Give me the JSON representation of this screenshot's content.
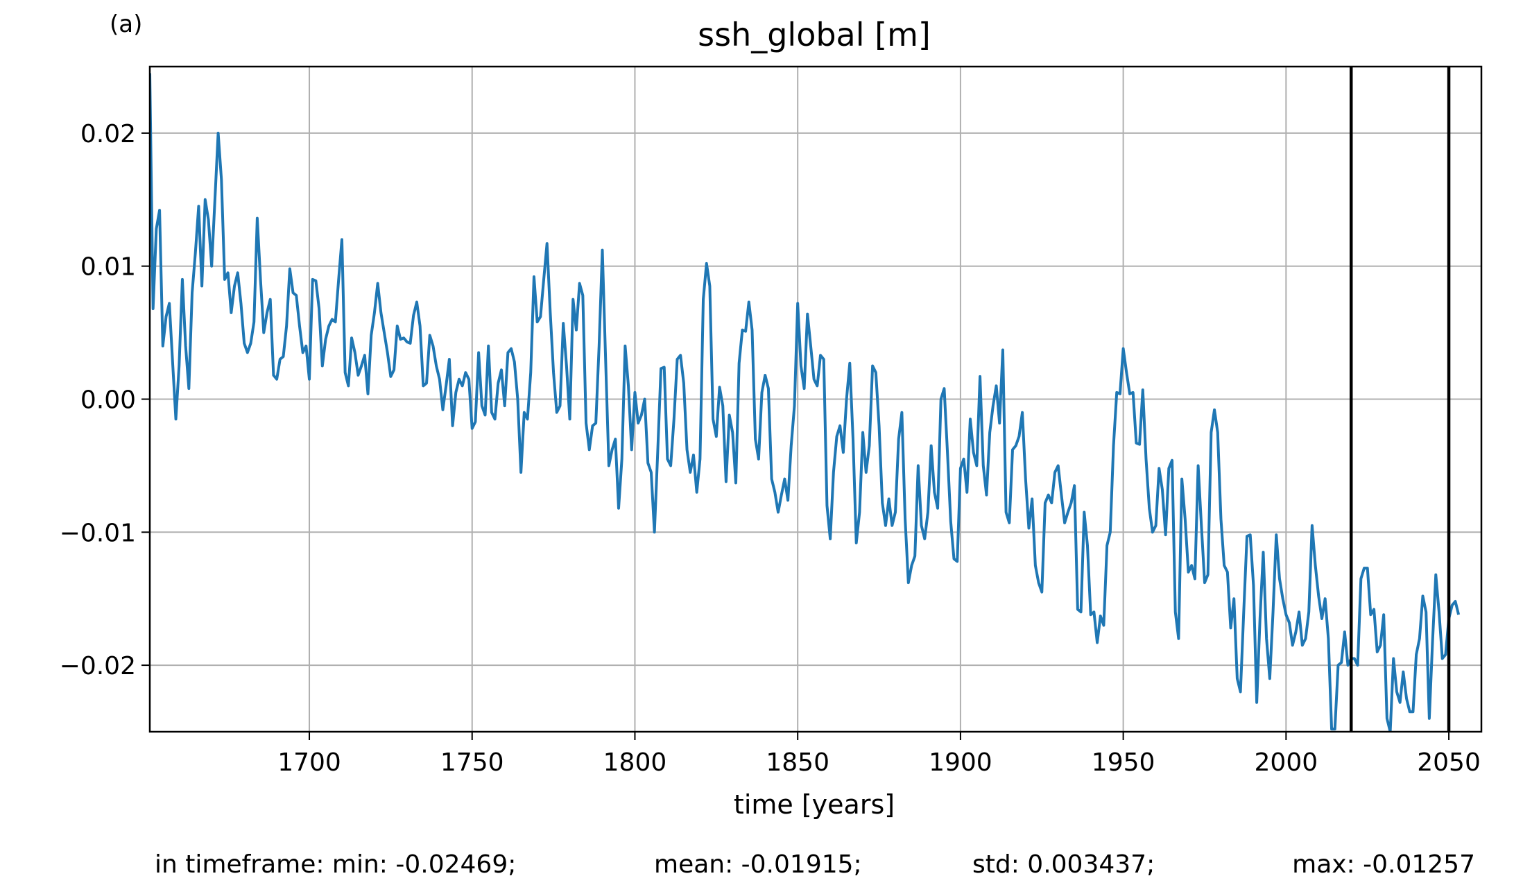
{
  "panel_label": "(a)",
  "chart_data": {
    "type": "line",
    "title": "ssh_global [m]",
    "xlabel": "time [years]",
    "ylabel": "",
    "xlim": [
      1651,
      2060
    ],
    "ylim": [
      -0.025,
      0.025
    ],
    "xticks": [
      1700,
      1750,
      1800,
      1850,
      1900,
      1950,
      2000,
      2050
    ],
    "xtick_labels": [
      "1700",
      "1750",
      "1800",
      "1850",
      "1900",
      "1950",
      "2000",
      "2050"
    ],
    "yticks": [
      -0.02,
      -0.01,
      0.0,
      0.01,
      0.02
    ],
    "ytick_labels": [
      "−0.02",
      "−0.01",
      "0.00",
      "0.01",
      "0.02"
    ],
    "grid": true,
    "line_color": "#1f77b4",
    "vlines": [
      2020,
      2050
    ],
    "vline_color": "#000000",
    "series": [
      {
        "x_start": 1651,
        "x_step": 1,
        "values": [
          0.0245,
          0.0068,
          0.0128,
          0.0142,
          0.004,
          0.0062,
          0.0072,
          0.0028,
          -0.0015,
          0.0025,
          0.009,
          0.004,
          0.0008,
          0.008,
          0.011,
          0.0145,
          0.0085,
          0.015,
          0.0135,
          0.01,
          0.015,
          0.02,
          0.0165,
          0.009,
          0.0095,
          0.0065,
          0.0085,
          0.0095,
          0.0072,
          0.0042,
          0.0035,
          0.0042,
          0.0058,
          0.0136,
          0.009,
          0.005,
          0.0065,
          0.0075,
          0.0018,
          0.0015,
          0.003,
          0.0032,
          0.0055,
          0.0098,
          0.008,
          0.0078,
          0.0055,
          0.0035,
          0.004,
          0.0015,
          0.009,
          0.0089,
          0.0068,
          0.0025,
          0.0045,
          0.0055,
          0.006,
          0.0058,
          0.009,
          0.012,
          0.002,
          0.001,
          0.0046,
          0.0035,
          0.0018,
          0.0025,
          0.0033,
          0.0004,
          0.0048,
          0.0065,
          0.0087,
          0.0065,
          0.005,
          0.0035,
          0.0017,
          0.0022,
          0.0055,
          0.0045,
          0.0046,
          0.0043,
          0.0042,
          0.0063,
          0.0073,
          0.0055,
          0.001,
          0.0012,
          0.0048,
          0.004,
          0.0025,
          0.0015,
          -0.0008,
          0.001,
          0.003,
          -0.002,
          0.0005,
          0.0015,
          0.001,
          0.002,
          0.0015,
          -0.0022,
          -0.0017,
          0.0035,
          -0.0005,
          -0.0012,
          0.004,
          -0.001,
          -0.0015,
          0.0012,
          0.0022,
          -0.0005,
          0.0035,
          0.0038,
          0.0028,
          0.0,
          -0.0055,
          -0.001,
          -0.0015,
          0.002,
          0.0092,
          0.0058,
          0.0062,
          0.009,
          0.0117,
          0.0065,
          0.002,
          -0.001,
          -0.0005,
          0.0057,
          0.0025,
          -0.0015,
          0.0075,
          0.0052,
          0.0087,
          0.0078,
          -0.0018,
          -0.0038,
          -0.002,
          -0.0018,
          0.004,
          0.0112,
          0.003,
          -0.005,
          -0.0038,
          -0.003,
          -0.0082,
          -0.0045,
          0.004,
          0.001,
          -0.0038,
          0.0005,
          -0.0018,
          -0.0012,
          0.0,
          -0.0048,
          -0.0055,
          -0.01,
          -0.004,
          0.0023,
          0.0024,
          -0.0045,
          -0.005,
          -0.0015,
          0.003,
          0.0033,
          0.0012,
          -0.0038,
          -0.0055,
          -0.0042,
          -0.007,
          -0.0045,
          0.0075,
          0.0102,
          0.0085,
          -0.0015,
          -0.0028,
          0.0009,
          -0.0005,
          -0.0062,
          -0.0012,
          -0.0025,
          -0.0063,
          0.0027,
          0.0052,
          0.0051,
          0.0073,
          0.0052,
          -0.003,
          -0.0045,
          0.0005,
          0.0018,
          0.0008,
          -0.006,
          -0.007,
          -0.0085,
          -0.0072,
          -0.006,
          -0.0076,
          -0.0035,
          -0.0005,
          0.0072,
          0.0025,
          0.0008,
          0.0064,
          0.004,
          0.0015,
          0.001,
          0.0033,
          0.003,
          -0.008,
          -0.0105,
          -0.0055,
          -0.0028,
          -0.002,
          -0.004,
          0.0,
          0.0027,
          -0.003,
          -0.0108,
          -0.0085,
          -0.0025,
          -0.0055,
          -0.0035,
          0.0025,
          0.002,
          -0.002,
          -0.0078,
          -0.0095,
          -0.0075,
          -0.0095,
          -0.0085,
          -0.003,
          -0.001,
          -0.009,
          -0.0138,
          -0.0125,
          -0.0118,
          -0.005,
          -0.0095,
          -0.0105,
          -0.0085,
          -0.0035,
          -0.007,
          -0.0082,
          0.0,
          0.0008,
          -0.004,
          -0.0092,
          -0.012,
          -0.0122,
          -0.0052,
          -0.0045,
          -0.007,
          -0.0015,
          -0.004,
          -0.005,
          0.0017,
          -0.005,
          -0.0072,
          -0.0025,
          -0.0005,
          0.001,
          -0.0018,
          0.0037,
          -0.0085,
          -0.0093,
          -0.0038,
          -0.0035,
          -0.0028,
          -0.001,
          -0.006,
          -0.0097,
          -0.0075,
          -0.0125,
          -0.0138,
          -0.0145,
          -0.0078,
          -0.0072,
          -0.0078,
          -0.0055,
          -0.005,
          -0.0072,
          -0.0093,
          -0.0085,
          -0.0078,
          -0.0065,
          -0.0158,
          -0.016,
          -0.0085,
          -0.011,
          -0.0162,
          -0.016,
          -0.0183,
          -0.0163,
          -0.017,
          -0.011,
          -0.01,
          -0.0035,
          0.0005,
          0.0004,
          0.0038,
          0.002,
          0.0004,
          0.0005,
          -0.0033,
          -0.0034,
          0.0007,
          -0.0045,
          -0.0082,
          -0.01,
          -0.0095,
          -0.0052,
          -0.0068,
          -0.0102,
          -0.0052,
          -0.0046,
          -0.016,
          -0.018,
          -0.006,
          -0.009,
          -0.013,
          -0.0125,
          -0.0135,
          -0.005,
          -0.0095,
          -0.0138,
          -0.0132,
          -0.0025,
          -0.0008,
          -0.0025,
          -0.009,
          -0.0125,
          -0.013,
          -0.0172,
          -0.015,
          -0.021,
          -0.022,
          -0.016,
          -0.0103,
          -0.0102,
          -0.014,
          -0.0228,
          -0.0165,
          -0.0115,
          -0.018,
          -0.021,
          -0.016,
          -0.0102,
          -0.0135,
          -0.015,
          -0.0162,
          -0.0168,
          -0.0185,
          -0.0175,
          -0.016,
          -0.0185,
          -0.018,
          -0.016,
          -0.0095,
          -0.0125,
          -0.0148,
          -0.0165,
          -0.015,
          -0.018,
          -0.0248,
          -0.0248,
          -0.02,
          -0.0198,
          -0.0175,
          -0.02,
          -0.0195,
          -0.0195,
          -0.02,
          -0.0135,
          -0.0127,
          -0.0127,
          -0.0162,
          -0.0158,
          -0.019,
          -0.0185,
          -0.0162,
          -0.024,
          -0.025,
          -0.0195,
          -0.022,
          -0.0228,
          -0.0205,
          -0.0225,
          -0.0235,
          -0.0235,
          -0.0192,
          -0.018,
          -0.0148,
          -0.016,
          -0.024,
          -0.0182,
          -0.0132,
          -0.016,
          -0.0195,
          -0.0192,
          -0.0165,
          -0.0155,
          -0.0152,
          -0.0162
        ]
      }
    ]
  },
  "stats": {
    "min": "in timeframe: min: -0.02469;",
    "mean": "mean: -0.01915;",
    "std": "std: 0.003437;",
    "max": "max: -0.01257"
  }
}
